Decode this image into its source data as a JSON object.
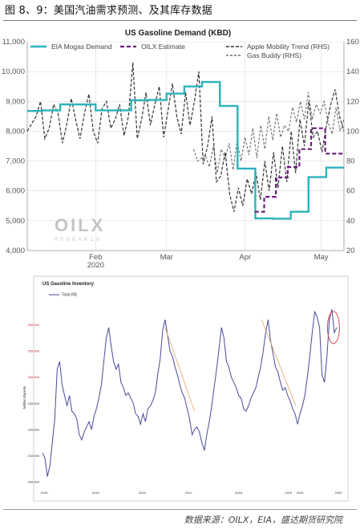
{
  "caption": "图 8、9：美国汽油需求预测、及其库存数据",
  "source": "数据来源：OILX，EIA，盛达期货研究院",
  "chart_data": [
    {
      "type": "line",
      "title": "US Gasoline Demand (KBD)",
      "ylabel": "",
      "y_left_range": [
        4000,
        11000
      ],
      "y_left_ticks": [
        "4,000",
        "5,000",
        "6,000",
        "7,000",
        "8,000",
        "9,000",
        "10,000",
        "11,000"
      ],
      "y_right_range": [
        20,
        160
      ],
      "y_right_ticks": [
        "20",
        "40",
        "60",
        "80",
        "100",
        "120",
        "140",
        "160"
      ],
      "x_ticks": [
        "Feb\n2020",
        "Mar",
        "Apr",
        "May"
      ],
      "x_range_days": [
        0,
        125
      ],
      "logo": {
        "main": "OILX",
        "sub": "RESEARCH"
      },
      "legend": [
        "EIA Mogas Demand",
        "OILX Estimate",
        "Apple Mobility Trend (RHS)",
        "Gas Buddy (RHS)"
      ],
      "colors": {
        "eia": "#2bb3bc",
        "oilx": "#6a1a7a",
        "apple": "#333333",
        "gasbuddy": "#6e6e6e",
        "axis": "#666666",
        "grid": "#dddddd"
      },
      "series": [
        {
          "name": "EIA Mogas Demand",
          "axis": "left",
          "step": true,
          "x": [
            0,
            6,
            13,
            20,
            27,
            34,
            41,
            48,
            55,
            62,
            69,
            76,
            83,
            90,
            97,
            104,
            111,
            118
          ],
          "y": [
            8680,
            8700,
            8900,
            8900,
            8700,
            8700,
            9040,
            9050,
            9260,
            9500,
            9650,
            8850,
            6750,
            5080,
            5070,
            5300,
            6460,
            6780
          ],
          "x_end": 125,
          "y_end": 6780
        },
        {
          "name": "OILX Estimate",
          "axis": "left",
          "step": true,
          "x": [
            97,
            101,
            106,
            111,
            116,
            121,
            127
          ],
          "y": [
            5300,
            5800,
            6450,
            6800,
            7400,
            8100,
            7250
          ],
          "x_end": 135,
          "y_end": 7250
        },
        {
          "name": "Apple Mobility Trend (RHS)",
          "axis": "right",
          "x": [
            0,
            2,
            4,
            6,
            8,
            10,
            12,
            14,
            16,
            18,
            20,
            22,
            24,
            26,
            28,
            30,
            32,
            34,
            36,
            38,
            40,
            42,
            44,
            46,
            48,
            50,
            52,
            54,
            56,
            58,
            60,
            62,
            64,
            66,
            68,
            70,
            72,
            74,
            76,
            78,
            80,
            82,
            84,
            86,
            88,
            90,
            92,
            94,
            96,
            98,
            100,
            102,
            104,
            106,
            108,
            110,
            112,
            114,
            116,
            118,
            120,
            122,
            124,
            126,
            128,
            130,
            132,
            134,
            136,
            138,
            140,
            142,
            144
          ],
          "y": [
            100,
            105,
            110,
            120,
            95,
            102,
            118,
            112,
            92,
            105,
            122,
            108,
            95,
            112,
            125,
            100,
            92,
            115,
            120,
            102,
            108,
            118,
            97,
            110,
            146,
            95,
            108,
            126,
            104,
            118,
            130,
            96,
            114,
            132,
            110,
            98,
            126,
            104,
            120,
            140,
            78,
            90,
            110,
            66,
            70,
            86,
            58,
            46,
            62,
            50,
            68,
            58,
            72,
            54,
            80,
            60,
            86,
            62,
            90,
            66,
            100,
            72,
            108,
            90,
            120,
            96,
            100,
            86,
            104,
            118,
            128,
            110,
            100
          ]
        },
        {
          "name": "Gas Buddy (RHS)",
          "axis": "right",
          "x": [
            84,
            86,
            88,
            90,
            92,
            94,
            96,
            98,
            100,
            102,
            104,
            106,
            108,
            110,
            112,
            114,
            116,
            118,
            120,
            122,
            124,
            126,
            128,
            130,
            132,
            134,
            136,
            138,
            140,
            142,
            144,
            146,
            148,
            150,
            152,
            154,
            156,
            158,
            160
          ],
          "y": [
            88,
            80,
            82,
            84,
            76,
            90,
            72,
            88,
            82,
            92,
            74,
            94,
            80,
            96,
            84,
            102,
            82,
            104,
            88,
            110,
            94,
            112,
            96,
            104,
            100,
            116,
            106,
            120,
            108,
            126,
            108,
            118,
            112,
            120,
            106,
            98,
            116,
            100,
            108
          ]
        }
      ]
    },
    {
      "type": "line",
      "title": "US Gasoline Inventory",
      "ylabel": "Million Barrels",
      "legend": [
        "Total RB"
      ],
      "y_ticks": [
        "200,000",
        "210,000",
        "220,000",
        "230,000",
        "240,000",
        "250,000",
        "260,000"
      ],
      "y_ticks_red": [
        "260,000",
        "250,000",
        "240,000"
      ],
      "x_ticks": [
        "2015",
        "2016",
        "2016",
        "2017",
        "2018",
        "2019",
        "2019",
        "2020"
      ],
      "colors": {
        "line": "#4a4a9a",
        "trend": "#e8a56a",
        "circle": "#d94b5a",
        "border": "#cccccc"
      },
      "series": [
        {
          "name": "Total RB",
          "x": [
            0,
            3,
            6,
            9,
            12,
            15,
            18,
            21,
            24,
            27,
            30,
            33,
            36,
            39,
            42,
            45,
            48,
            51,
            54,
            57,
            60,
            63,
            66,
            69,
            72,
            75,
            78,
            81,
            84,
            87,
            90,
            93,
            96,
            99,
            102,
            105,
            108,
            111,
            114,
            117,
            120,
            123,
            126,
            129,
            132,
            135,
            138,
            141,
            144,
            147,
            150,
            153,
            156,
            159,
            162,
            165,
            168,
            171,
            174,
            177,
            180,
            183,
            186,
            189,
            192,
            195,
            198,
            201,
            204,
            207,
            210,
            213,
            216,
            219,
            222,
            225,
            228,
            231,
            234,
            237,
            240,
            243,
            246,
            249,
            252,
            255,
            258,
            261,
            264,
            267,
            270,
            273,
            276,
            279,
            282,
            285,
            288,
            291,
            294,
            297,
            300,
            303,
            306,
            309,
            312,
            315,
            318,
            321,
            324,
            327,
            330,
            333,
            336,
            339,
            342,
            345,
            348,
            351,
            354,
            357,
            360
          ],
          "y": [
            211,
            209,
            202,
            206,
            215,
            224,
            243,
            246,
            237,
            233,
            229,
            233,
            227,
            226,
            224,
            218,
            216,
            219,
            221,
            223,
            220,
            225,
            228,
            232,
            237,
            246,
            255,
            259,
            252,
            246,
            243,
            245,
            238,
            236,
            233,
            234,
            232,
            230,
            226,
            225,
            222,
            226,
            223,
            228,
            229,
            231,
            234,
            241,
            247,
            258,
            262,
            256,
            250,
            248,
            244,
            241,
            237,
            234,
            232,
            228,
            224,
            218,
            220,
            221,
            219,
            215,
            212,
            218,
            223,
            229,
            236,
            243,
            251,
            259,
            255,
            246,
            244,
            240,
            238,
            236,
            233,
            232,
            228,
            227,
            229,
            232,
            234,
            236,
            240,
            244,
            250,
            257,
            262,
            254,
            249,
            244,
            242,
            238,
            235,
            236,
            233,
            231,
            228,
            226,
            222,
            226,
            229,
            233,
            240,
            248,
            257,
            265,
            263,
            259,
            241,
            238,
            248,
            262,
            266,
            257,
            259
          ]
        }
      ]
    }
  ]
}
